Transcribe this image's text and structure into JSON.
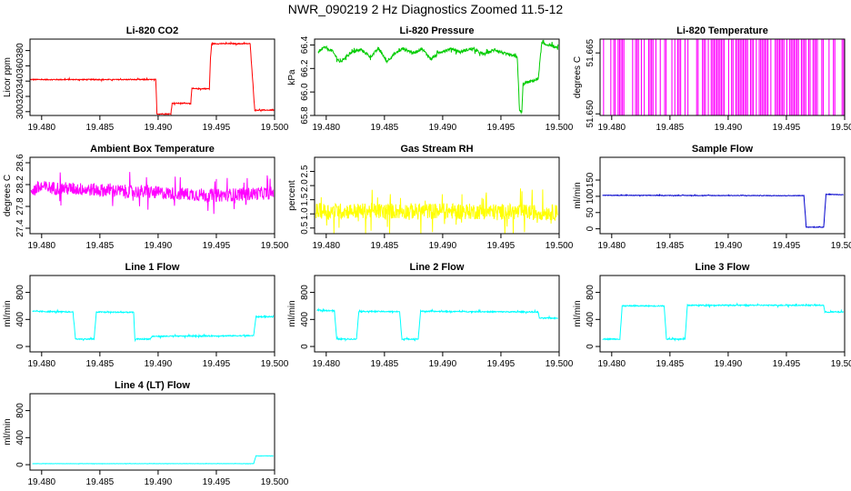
{
  "figure": {
    "title": "NWR_090219  2 Hz Diagnostics Zoomed 11.5-12"
  },
  "chart_data": [
    {
      "type": "line",
      "title": "Li-820 CO2",
      "ylabel": "Licor ppm",
      "xlim": [
        19.479,
        19.5
      ],
      "xticks": [
        "19.480",
        "19.485",
        "19.490",
        "19.495",
        "19.500"
      ],
      "ylim": [
        295,
        395
      ],
      "yticks": [
        "300",
        "320",
        "340",
        "360",
        "380"
      ],
      "color": "#ff0000",
      "series": [
        {
          "name": "CO2",
          "noise": 0.6,
          "points": [
            [
              19.479,
              342
            ],
            [
              19.4898,
              342
            ],
            [
              19.4899,
              297
            ],
            [
              19.4911,
              297
            ],
            [
              19.4912,
              311
            ],
            [
              19.4928,
              311
            ],
            [
              19.4929,
              330
            ],
            [
              19.4944,
              330
            ],
            [
              19.4945,
              370
            ],
            [
              19.4946,
              389
            ],
            [
              19.4979,
              389
            ],
            [
              19.4983,
              302
            ],
            [
              19.49995,
              302
            ]
          ]
        }
      ]
    },
    {
      "type": "line",
      "title": "Li-820 Pressure",
      "ylabel": "kPa",
      "xlim": [
        19.479,
        19.5
      ],
      "xticks": [
        "19.480",
        "19.485",
        "19.490",
        "19.495",
        "19.500"
      ],
      "ylim": [
        65.8,
        66.45
      ],
      "yticks": [
        "65.8",
        "66.0",
        "66.2",
        "66.4"
      ],
      "color": "#00cc00",
      "series": [
        {
          "name": "Pressure",
          "noise": 0.012,
          "points": [
            [
              19.4793,
              66.33
            ],
            [
              19.4798,
              66.38
            ],
            [
              19.4805,
              66.35
            ],
            [
              19.4812,
              66.25
            ],
            [
              19.482,
              66.33
            ],
            [
              19.483,
              66.36
            ],
            [
              19.4838,
              66.3
            ],
            [
              19.4845,
              66.37
            ],
            [
              19.4852,
              66.26
            ],
            [
              19.4858,
              66.32
            ],
            [
              19.4866,
              66.37
            ],
            [
              19.4875,
              66.33
            ],
            [
              19.4882,
              66.37
            ],
            [
              19.489,
              66.28
            ],
            [
              19.4898,
              66.34
            ],
            [
              19.4908,
              66.37
            ],
            [
              19.4915,
              66.34
            ],
            [
              19.4925,
              66.37
            ],
            [
              19.4935,
              66.32
            ],
            [
              19.4945,
              66.36
            ],
            [
              19.4955,
              66.32
            ],
            [
              19.4964,
              66.3
            ],
            [
              19.4966,
              65.84
            ],
            [
              19.4968,
              65.83
            ],
            [
              19.4969,
              66.07
            ],
            [
              19.4982,
              66.11
            ],
            [
              19.4985,
              66.41
            ],
            [
              19.4992,
              66.4
            ],
            [
              19.4999,
              66.37
            ]
          ]
        }
      ]
    },
    {
      "type": "bar",
      "title": "Li-820 Temperature",
      "ylabel": "degrees C",
      "xlim": [
        19.479,
        19.5
      ],
      "xticks": [
        "19.480",
        "19.485",
        "19.490",
        "19.495",
        "19.500"
      ],
      "ylim": [
        51.6496,
        51.6684
      ],
      "yticks": [
        "51.650",
        "51.665"
      ],
      "color": "#ff00ff",
      "series": [
        {
          "name": "Temperature",
          "values": [
            51.6496,
            51.6684
          ]
        }
      ]
    },
    {
      "type": "line",
      "title": "Ambient Box Temperature",
      "ylabel": "degrees C",
      "xlim": [
        19.479,
        19.5
      ],
      "xticks": [
        "19.480",
        "19.485",
        "19.490",
        "19.495",
        "19.500"
      ],
      "ylim": [
        27.3,
        28.7
      ],
      "yticks": [
        "27.4",
        "27.8",
        "28.2",
        "28.6"
      ],
      "color": "#ff00ff",
      "series": [
        {
          "name": "Ambient",
          "noise": 0.12,
          "points": [
            [
              19.4791,
              28.1
            ],
            [
              19.48,
              28.15
            ],
            [
              19.485,
              28.1
            ],
            [
              19.49,
              28.05
            ],
            [
              19.495,
              28.0
            ],
            [
              19.4999,
              28.05
            ]
          ]
        }
      ]
    },
    {
      "type": "line",
      "title": "Gas Stream RH",
      "ylabel": "percent",
      "xlim": [
        19.479,
        19.5
      ],
      "xticks": [
        "19.480",
        "19.485",
        "19.490",
        "19.495",
        "19.500"
      ],
      "ylim": [
        0.3,
        3.0
      ],
      "yticks": [
        "0.5",
        "1.0",
        "1.5",
        "2.0",
        "2.5"
      ],
      "color": "#ffff00",
      "series": [
        {
          "name": "RH",
          "noise": 0.28,
          "points": [
            [
              19.4791,
              1.1
            ],
            [
              19.485,
              1.1
            ],
            [
              19.49,
              1.1
            ],
            [
              19.4999,
              1.05
            ]
          ]
        }
      ]
    },
    {
      "type": "line",
      "title": "Sample Flow",
      "ylabel": "ml/min",
      "xlim": [
        19.479,
        19.5
      ],
      "xticks": [
        "19.480",
        "19.485",
        "19.490",
        "19.495",
        "19.500"
      ],
      "ylim": [
        -15,
        220
      ],
      "yticks": [
        "0",
        "50",
        "100",
        "150"
      ],
      "color": "#0000cc",
      "series": [
        {
          "name": "SampleFlow",
          "noise": 0.8,
          "points": [
            [
              19.4792,
              103
            ],
            [
              19.4965,
              102
            ],
            [
              19.4967,
              5
            ],
            [
              19.4982,
              5
            ],
            [
              19.4984,
              106
            ],
            [
              19.4999,
              105
            ]
          ]
        }
      ]
    },
    {
      "type": "line",
      "title": "Line 1 Flow",
      "ylabel": "ml/min",
      "xlim": [
        19.479,
        19.5
      ],
      "xticks": [
        "19.480",
        "19.485",
        "19.490",
        "19.495",
        "19.500"
      ],
      "ylim": [
        -80,
        1050
      ],
      "yticks": [
        "0",
        "400",
        "800"
      ],
      "color": "#00ffff",
      "series": [
        {
          "name": "Line1",
          "noise": 8,
          "points": [
            [
              19.4792,
              520
            ],
            [
              19.4827,
              510
            ],
            [
              19.4829,
              110
            ],
            [
              19.4845,
              110
            ],
            [
              19.4847,
              510
            ],
            [
              19.4879,
              505
            ],
            [
              19.488,
              110
            ],
            [
              19.4893,
              110
            ],
            [
              19.4895,
              150
            ],
            [
              19.4982,
              160
            ],
            [
              19.4984,
              440
            ],
            [
              19.4999,
              440
            ]
          ]
        }
      ]
    },
    {
      "type": "line",
      "title": "Line 2 Flow",
      "ylabel": "ml/min",
      "xlim": [
        19.479,
        19.5
      ],
      "xticks": [
        "19.480",
        "19.485",
        "19.490",
        "19.495",
        "19.500"
      ],
      "ylim": [
        -80,
        1050
      ],
      "yticks": [
        "0",
        "400",
        "800"
      ],
      "color": "#00ffff",
      "series": [
        {
          "name": "Line2",
          "noise": 8,
          "points": [
            [
              19.4792,
              535
            ],
            [
              19.4807,
              530
            ],
            [
              19.4809,
              110
            ],
            [
              19.4826,
              110
            ],
            [
              19.4828,
              520
            ],
            [
              19.4863,
              515
            ],
            [
              19.4865,
              110
            ],
            [
              19.4879,
              110
            ],
            [
              19.4881,
              520
            ],
            [
              19.4982,
              510
            ],
            [
              19.4983,
              420
            ],
            [
              19.4999,
              420
            ]
          ]
        }
      ]
    },
    {
      "type": "line",
      "title": "Line 3 Flow",
      "ylabel": "ml/min",
      "xlim": [
        19.479,
        19.5
      ],
      "xticks": [
        "19.480",
        "19.485",
        "19.490",
        "19.495",
        "19.500"
      ],
      "ylim": [
        -80,
        1050
      ],
      "yticks": [
        "0",
        "400",
        "800"
      ],
      "color": "#00ffff",
      "series": [
        {
          "name": "Line3",
          "noise": 8,
          "points": [
            [
              19.4792,
              110
            ],
            [
              19.4807,
              110
            ],
            [
              19.4809,
              600
            ],
            [
              19.4845,
              600
            ],
            [
              19.4847,
              110
            ],
            [
              19.4863,
              110
            ],
            [
              19.4865,
              610
            ],
            [
              19.4982,
              610
            ],
            [
              19.4983,
              510
            ],
            [
              19.4999,
              510
            ]
          ]
        }
      ]
    },
    {
      "type": "line",
      "title": "Line 4 (LT) Flow",
      "ylabel": "ml/min",
      "xlim": [
        19.479,
        19.5
      ],
      "xticks": [
        "19.480",
        "19.485",
        "19.490",
        "19.495",
        "19.500"
      ],
      "ylim": [
        -80,
        1050
      ],
      "yticks": [
        "0",
        "400",
        "800"
      ],
      "color": "#00ffff",
      "series": [
        {
          "name": "Line4",
          "noise": 1.5,
          "points": [
            [
              19.4792,
              15
            ],
            [
              19.4982,
              15
            ],
            [
              19.4984,
              130
            ],
            [
              19.4999,
              130
            ]
          ]
        }
      ]
    }
  ]
}
